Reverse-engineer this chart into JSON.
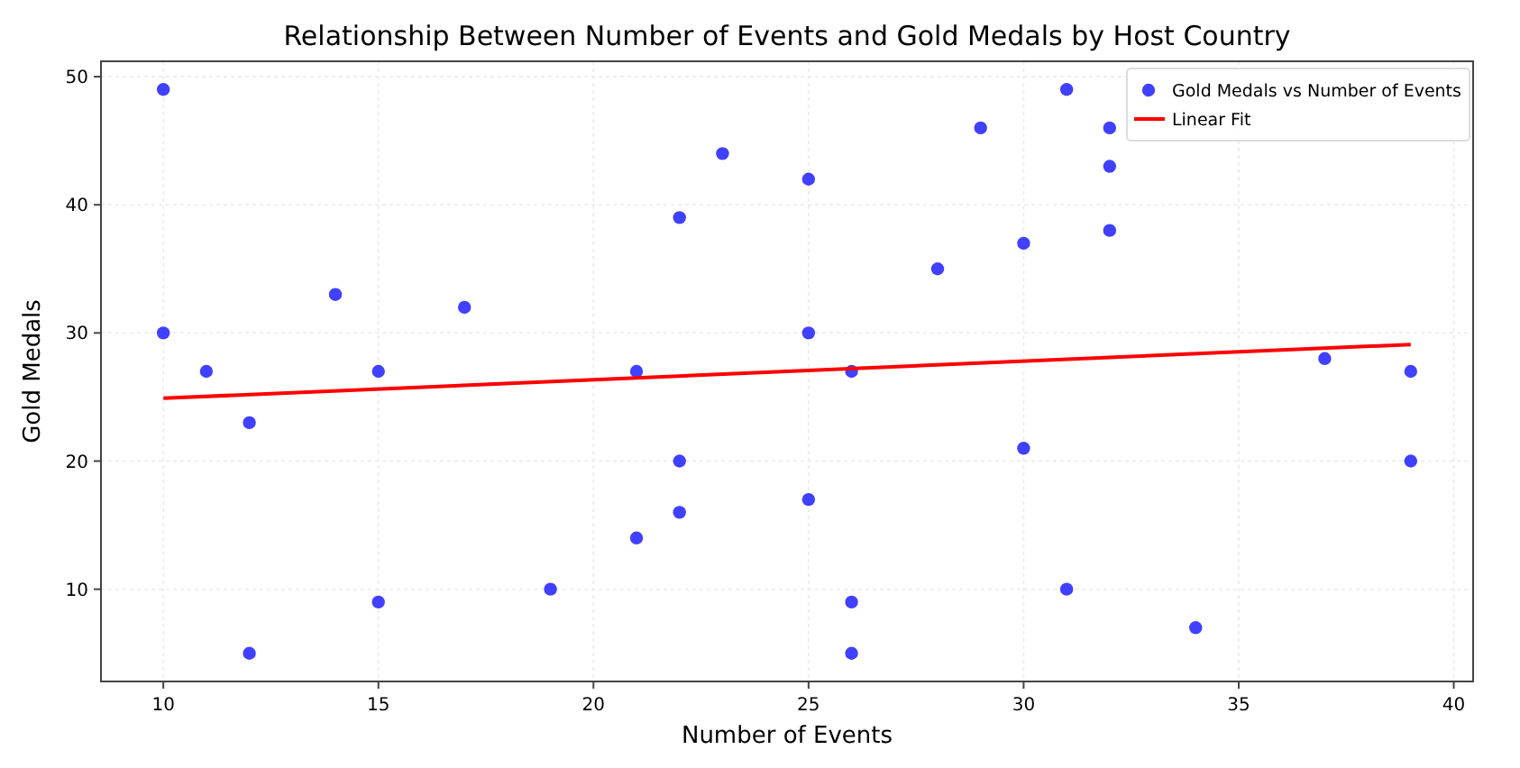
{
  "chart_data": {
    "type": "scatter",
    "title": "Relationship Between Number of Events and Gold Medals by Host Country",
    "xlabel": "Number of Events",
    "ylabel": "Gold Medals",
    "xlim": [
      8.55,
      40.45
    ],
    "ylim": [
      2.8,
      51.2
    ],
    "xticks": [
      10,
      15,
      20,
      25,
      30,
      35,
      40
    ],
    "yticks": [
      10,
      20,
      30,
      40,
      50
    ],
    "grid": true,
    "legend": "top right",
    "series": [
      {
        "name": "Gold Medals vs Number of Events",
        "color": "#4040ff",
        "marker": "circle",
        "x": [
          10,
          10,
          11,
          12,
          12,
          14,
          15,
          15,
          17,
          19,
          21,
          21,
          22,
          22,
          22,
          23,
          25,
          25,
          25,
          26,
          26,
          26,
          28,
          29,
          30,
          30,
          31,
          31,
          32,
          32,
          32,
          34,
          37,
          39,
          39
        ],
        "values": [
          49,
          30,
          27,
          23,
          5,
          33,
          27,
          9,
          32,
          10,
          27,
          14,
          39,
          20,
          16,
          44,
          42,
          30,
          17,
          27,
          9,
          5,
          35,
          46,
          37,
          21,
          49,
          10,
          46,
          43,
          38,
          7,
          28,
          27,
          20
        ]
      },
      {
        "name": "Linear Fit",
        "type": "line",
        "color": "#ff0000",
        "line_style": "solid",
        "marker": "none",
        "x": [
          10,
          39
        ],
        "values": [
          24.9,
          29.1
        ]
      }
    ]
  }
}
